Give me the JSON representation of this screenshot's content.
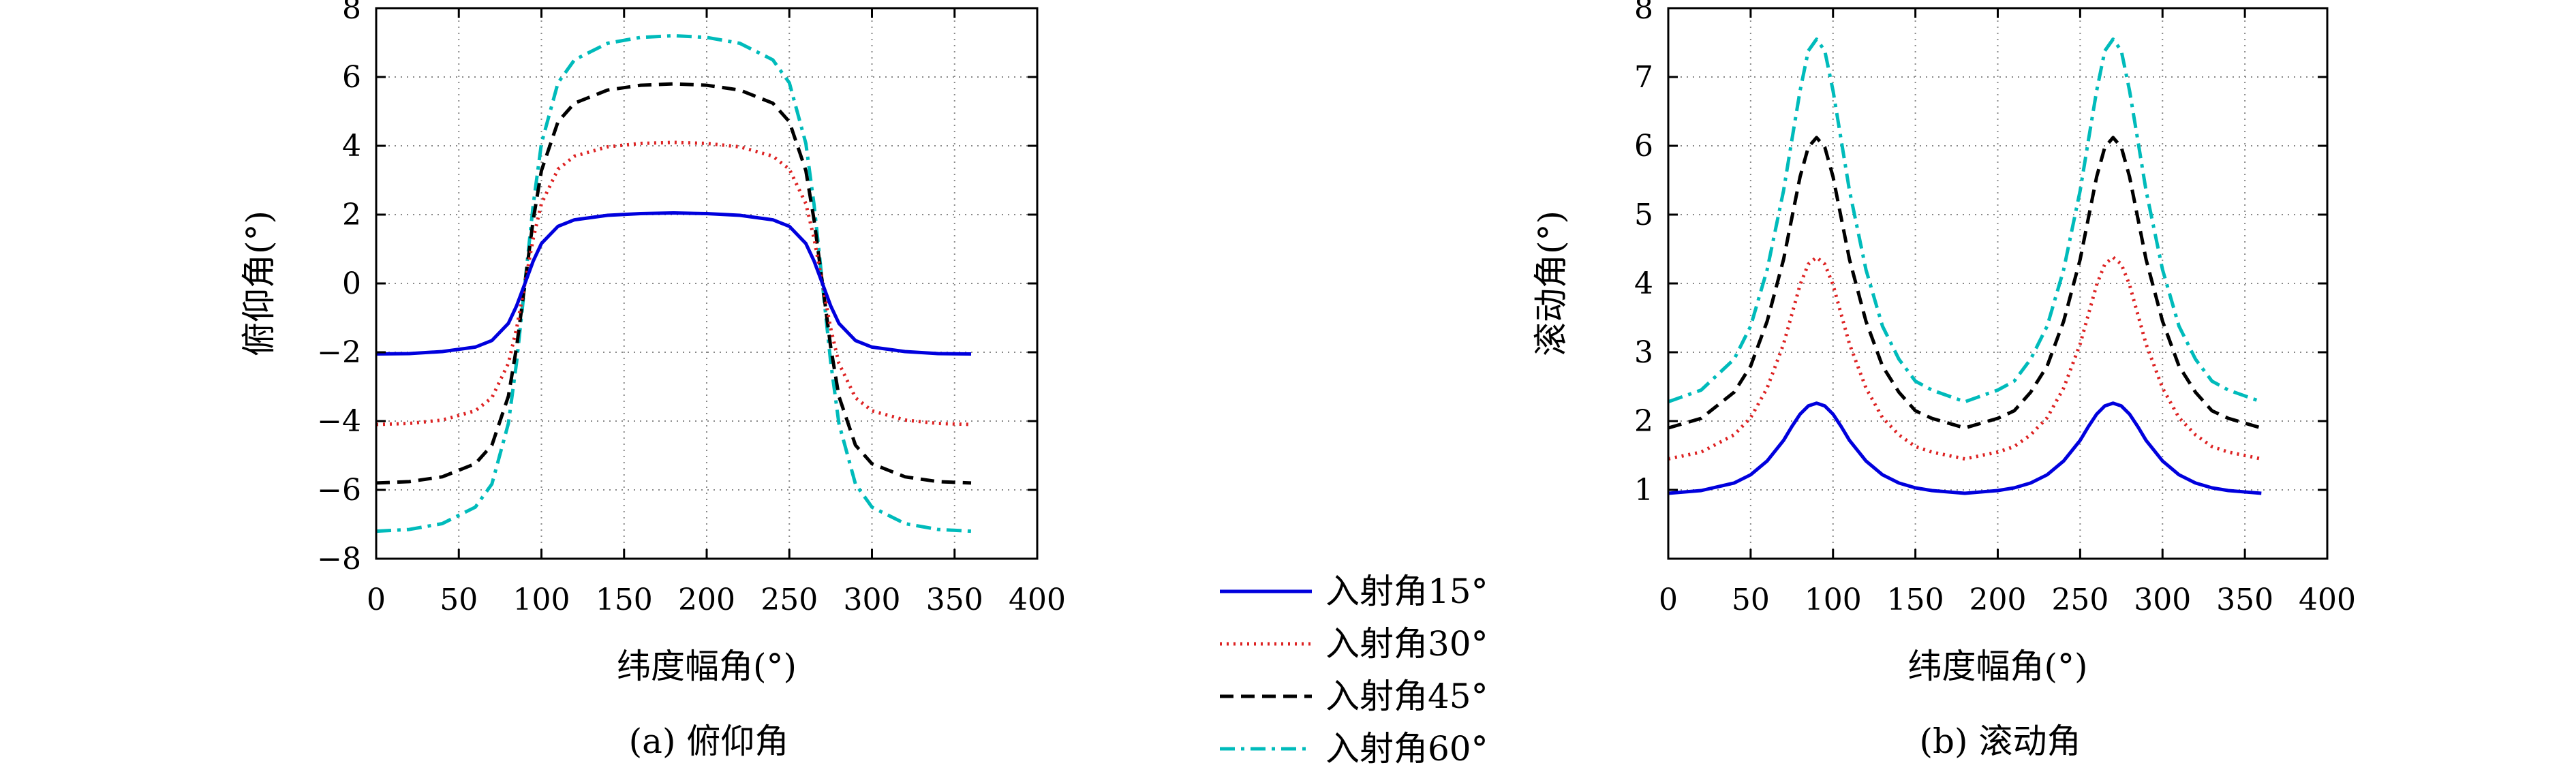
{
  "legend": {
    "placement": "center-bottom",
    "items": [
      {
        "label": "入射角15°",
        "color": "#0000dd",
        "dash": "solid"
      },
      {
        "label": "入射角30°",
        "color": "#dd2222",
        "dash": "dotted"
      },
      {
        "label": "入射角45°",
        "color": "#000000",
        "dash": "dashed"
      },
      {
        "label": "入射角60°",
        "color": "#00bbbb",
        "dash": "dashdot"
      }
    ]
  },
  "chart_data": [
    {
      "type": "line",
      "caption": "(a) 俯仰角",
      "xlabel": "纬度幅角(°)",
      "ylabel": "俯仰角(°)",
      "xlim": [
        0,
        400
      ],
      "ylim": [
        -8,
        8
      ],
      "xticks": [
        "0",
        "50",
        "100",
        "150",
        "200",
        "250",
        "300",
        "350",
        "400"
      ],
      "yticks": [
        "−8",
        "−6",
        "−4",
        "−2",
        "0",
        "2",
        "4",
        "6",
        "8"
      ],
      "grid": true,
      "x": [
        0,
        20,
        40,
        60,
        70,
        80,
        85,
        90,
        95,
        100,
        110,
        120,
        140,
        160,
        180,
        200,
        220,
        240,
        250,
        260,
        265,
        270,
        275,
        280,
        290,
        300,
        320,
        340,
        360
      ],
      "series": [
        {
          "name": "入射角15°",
          "values": [
            -2.05,
            -2.04,
            -1.98,
            -1.85,
            -1.66,
            -1.16,
            -0.65,
            0.0,
            0.65,
            1.16,
            1.66,
            1.85,
            1.98,
            2.03,
            2.05,
            2.03,
            1.98,
            1.85,
            1.66,
            1.16,
            0.65,
            0.0,
            -0.65,
            -1.16,
            -1.66,
            -1.85,
            -1.98,
            -2.04,
            -2.05
          ]
        },
        {
          "name": "入射角30°",
          "values": [
            -4.1,
            -4.07,
            -3.97,
            -3.7,
            -3.32,
            -2.32,
            -1.3,
            0.0,
            1.3,
            2.32,
            3.32,
            3.7,
            3.97,
            4.07,
            4.1,
            4.07,
            3.97,
            3.7,
            3.32,
            2.32,
            1.3,
            0.0,
            -1.3,
            -2.32,
            -3.32,
            -3.7,
            -3.97,
            -4.07,
            -4.1
          ]
        },
        {
          "name": "入射角45°",
          "values": [
            -5.8,
            -5.76,
            -5.62,
            -5.24,
            -4.7,
            -3.28,
            -1.84,
            0.0,
            1.84,
            3.28,
            4.7,
            5.24,
            5.62,
            5.76,
            5.8,
            5.76,
            5.62,
            5.24,
            4.7,
            3.28,
            1.84,
            0.0,
            -1.84,
            -3.28,
            -4.7,
            -5.24,
            -5.62,
            -5.76,
            -5.8
          ]
        },
        {
          "name": "入射角60°",
          "values": [
            -7.2,
            -7.15,
            -6.98,
            -6.5,
            -5.83,
            -4.07,
            -2.28,
            0.0,
            2.28,
            4.07,
            5.83,
            6.5,
            6.98,
            7.15,
            7.2,
            7.15,
            6.98,
            6.5,
            5.83,
            4.07,
            2.28,
            0.0,
            -2.28,
            -4.07,
            -5.83,
            -6.5,
            -6.98,
            -7.15,
            -7.2
          ]
        }
      ]
    },
    {
      "type": "line",
      "caption": "(b) 滚动角",
      "xlabel": "纬度幅角(°)",
      "ylabel": "滚动角(°)",
      "xlim": [
        0,
        400
      ],
      "ylim": [
        0,
        8
      ],
      "xticks": [
        "0",
        "50",
        "100",
        "150",
        "200",
        "250",
        "300",
        "350",
        "400"
      ],
      "yticks": [
        "",
        "1",
        "2",
        "3",
        "4",
        "5",
        "6",
        "7",
        "8"
      ],
      "grid": true,
      "x": [
        0,
        20,
        40,
        50,
        60,
        70,
        75,
        80,
        85,
        90,
        95,
        100,
        105,
        110,
        120,
        130,
        140,
        150,
        160,
        180,
        200,
        210,
        220,
        230,
        240,
        250,
        255,
        260,
        265,
        270,
        275,
        280,
        285,
        290,
        300,
        310,
        320,
        330,
        340,
        360
      ],
      "series": [
        {
          "name": "入射角15°",
          "values": [
            0.95,
            0.99,
            1.1,
            1.22,
            1.42,
            1.72,
            1.92,
            2.1,
            2.22,
            2.26,
            2.22,
            2.1,
            1.92,
            1.72,
            1.42,
            1.22,
            1.1,
            1.03,
            0.99,
            0.95,
            0.99,
            1.03,
            1.1,
            1.22,
            1.42,
            1.72,
            1.92,
            2.1,
            2.22,
            2.26,
            2.22,
            2.1,
            1.92,
            1.72,
            1.42,
            1.22,
            1.1,
            1.03,
            0.99,
            0.95
          ]
        },
        {
          "name": "入射角30°",
          "values": [
            1.45,
            1.55,
            1.8,
            2.05,
            2.48,
            3.12,
            3.55,
            3.98,
            4.28,
            4.38,
            4.28,
            3.98,
            3.55,
            3.12,
            2.48,
            2.05,
            1.8,
            1.63,
            1.55,
            1.45,
            1.55,
            1.63,
            1.8,
            2.05,
            2.48,
            3.12,
            3.55,
            3.98,
            4.28,
            4.38,
            4.28,
            3.98,
            3.55,
            3.12,
            2.48,
            2.05,
            1.8,
            1.63,
            1.55,
            1.45
          ]
        },
        {
          "name": "入射角45°",
          "values": [
            1.9,
            2.04,
            2.42,
            2.8,
            3.45,
            4.35,
            4.95,
            5.55,
            5.98,
            6.12,
            5.98,
            5.55,
            4.95,
            4.35,
            3.45,
            2.8,
            2.42,
            2.15,
            2.04,
            1.9,
            2.04,
            2.15,
            2.42,
            2.8,
            3.45,
            4.35,
            4.95,
            5.55,
            5.98,
            6.12,
            5.98,
            5.55,
            4.95,
            4.35,
            3.45,
            2.8,
            2.42,
            2.15,
            2.04,
            1.9
          ]
        },
        {
          "name": "入射角60°",
          "values": [
            2.28,
            2.45,
            2.9,
            3.38,
            4.2,
            5.35,
            6.08,
            6.8,
            7.38,
            7.55,
            7.38,
            6.8,
            6.08,
            5.35,
            4.2,
            3.38,
            2.9,
            2.58,
            2.45,
            2.28,
            2.45,
            2.58,
            2.9,
            3.38,
            4.2,
            5.35,
            6.08,
            6.8,
            7.38,
            7.55,
            7.38,
            6.8,
            6.08,
            5.35,
            4.2,
            3.38,
            2.9,
            2.58,
            2.45,
            2.28
          ]
        }
      ]
    }
  ]
}
